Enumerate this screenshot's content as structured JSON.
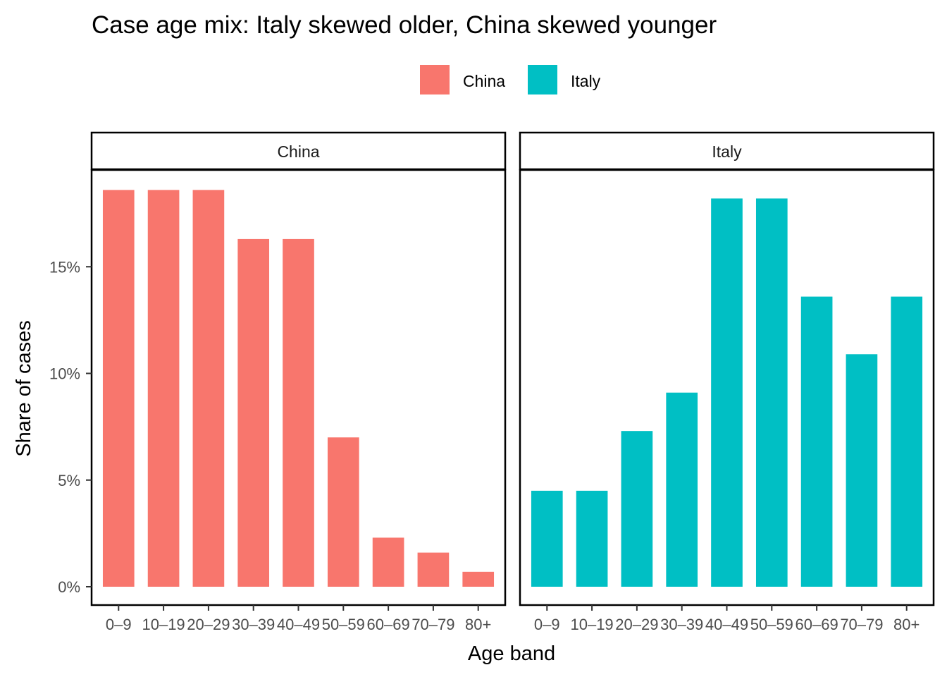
{
  "chart_data": {
    "type": "bar",
    "title": "Case age mix: Italy skewed older, China skewed younger",
    "xlabel": "Age band",
    "ylabel": "Share of cases",
    "categories": [
      "0–9",
      "10–19",
      "20–29",
      "30–39",
      "40–49",
      "50–59",
      "60–69",
      "70–79",
      "80+"
    ],
    "ylim": [
      0,
      19
    ],
    "y_ticks": [
      0,
      5,
      10,
      15
    ],
    "y_tick_labels": [
      "0%",
      "5%",
      "10%",
      "15%"
    ],
    "legend": {
      "placement": "top",
      "entries": [
        "China",
        "Italy"
      ]
    },
    "grid": false,
    "facets": [
      {
        "name": "China",
        "color": "#F8766D",
        "values": [
          18.6,
          18.6,
          18.6,
          16.3,
          16.3,
          7.0,
          2.3,
          1.6,
          0.7
        ]
      },
      {
        "name": "Italy",
        "color": "#00BFC4",
        "values": [
          4.5,
          4.5,
          7.3,
          9.1,
          18.2,
          18.2,
          13.6,
          10.9,
          13.6
        ]
      }
    ]
  }
}
